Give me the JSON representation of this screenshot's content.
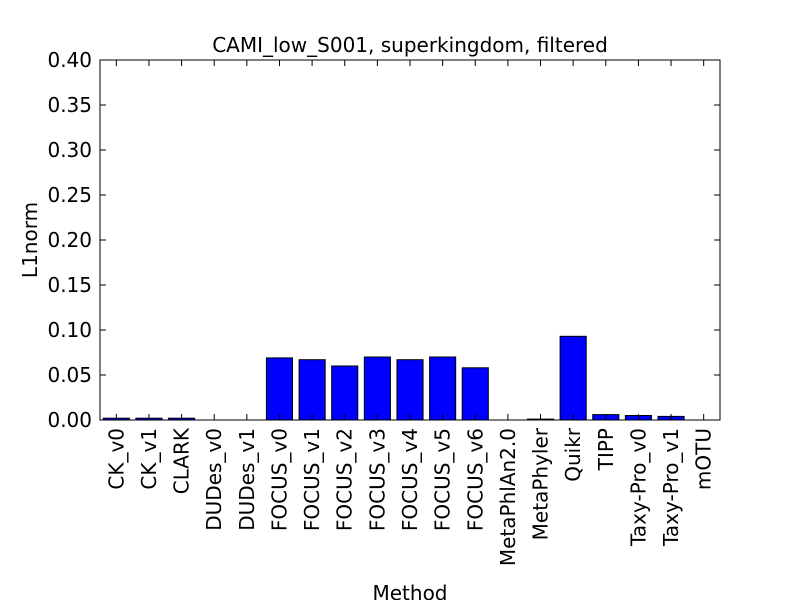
{
  "chart_data": {
    "type": "bar",
    "title": "CAMI_low_S001, superkingdom, filtered",
    "xlabel": "Method",
    "ylabel": "L1norm",
    "ylim": [
      0,
      0.4
    ],
    "yticks": [
      "0.00",
      "0.05",
      "0.10",
      "0.15",
      "0.20",
      "0.25",
      "0.30",
      "0.35",
      "0.40"
    ],
    "bar_color": "#0000ff",
    "grid": false,
    "categories": [
      "CK_v0",
      "CK_v1",
      "CLARK",
      "DUDes_v0",
      "DUDes_v1",
      "FOCUS_v0",
      "FOCUS_v1",
      "FOCUS_v2",
      "FOCUS_v3",
      "FOCUS_v4",
      "FOCUS_v5",
      "FOCUS_v6",
      "MetaPhlAn2.0",
      "MetaPhyler",
      "Quikr",
      "TIPP",
      "Taxy-Pro_v0",
      "Taxy-Pro_v1",
      "mOTU"
    ],
    "values": [
      0.002,
      0.002,
      0.002,
      0.0,
      0.0,
      0.069,
      0.067,
      0.06,
      0.07,
      0.067,
      0.07,
      0.058,
      0.0,
      0.001,
      0.093,
      0.006,
      0.005,
      0.004,
      0.0
    ]
  }
}
